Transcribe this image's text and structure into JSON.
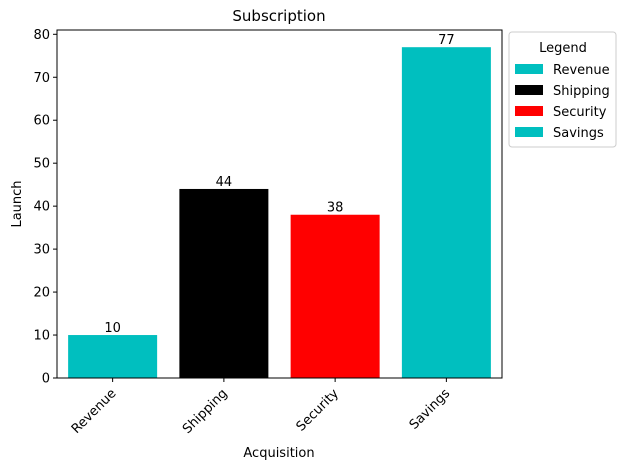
{
  "chart_data": {
    "type": "bar",
    "title": "Subscription",
    "xlabel": "Acquisition",
    "ylabel": "Launch",
    "categories": [
      "Revenue",
      "Shipping",
      "Security",
      "Savings"
    ],
    "values": [
      10,
      44,
      38,
      77
    ],
    "value_labels": [
      "10",
      "44",
      "38",
      "77"
    ],
    "colors": [
      "#00bfbf",
      "#000000",
      "#ff0000",
      "#00bfbf"
    ],
    "ylim": [
      0,
      81
    ],
    "yticks": [
      0,
      10,
      20,
      30,
      40,
      50,
      60,
      70,
      80
    ],
    "ytick_labels": [
      "0",
      "10",
      "20",
      "30",
      "40",
      "50",
      "60",
      "70",
      "80"
    ],
    "grid": false,
    "legend": {
      "title": "Legend",
      "placement": "outside upper right",
      "entries": [
        {
          "label": "Revenue",
          "color": "#00bfbf"
        },
        {
          "label": "Shipping",
          "color": "#000000"
        },
        {
          "label": "Security",
          "color": "#ff0000"
        },
        {
          "label": "Savings",
          "color": "#00bfbf"
        }
      ]
    }
  }
}
